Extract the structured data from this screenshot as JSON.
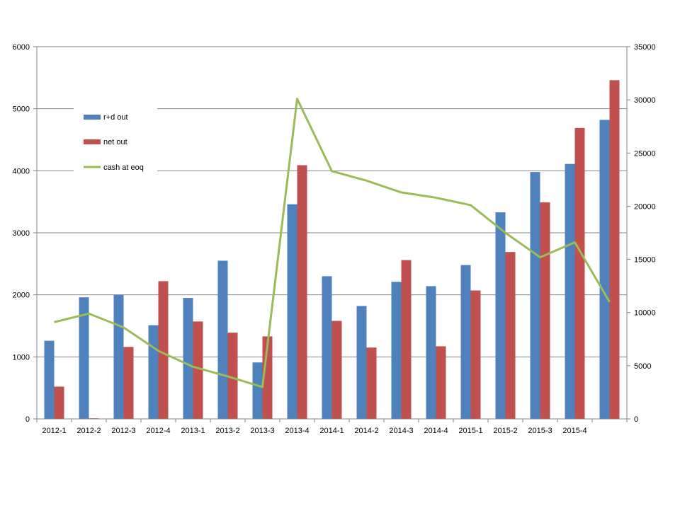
{
  "chart_data": {
    "type": "bar",
    "categories": [
      "2012-1",
      "2012-2",
      "2012-3",
      "2012-4",
      "2013-1",
      "2013-2",
      "2013-3",
      "2013-4",
      "2014-1",
      "2014-2",
      "2014-3",
      "2014-4",
      "2015-1",
      "2015-2",
      "2015-3",
      "2015-4",
      ""
    ],
    "series": [
      {
        "name": "r+d out",
        "type": "bar",
        "axis": "left",
        "color": "#4F81BD",
        "values": [
          1260,
          1960,
          2000,
          1510,
          1950,
          2550,
          910,
          3460,
          2300,
          1820,
          2210,
          2140,
          2480,
          3330,
          3980,
          4110,
          4820
        ]
      },
      {
        "name": "net out",
        "type": "bar",
        "axis": "left",
        "color": "#C0504D",
        "values": [
          520,
          10,
          1160,
          2220,
          1570,
          1390,
          1330,
          4090,
          1580,
          1150,
          2560,
          1170,
          2070,
          2690,
          3490,
          4690,
          5460
        ]
      },
      {
        "name": "cash at eoq",
        "type": "line",
        "axis": "right",
        "color": "#9BBB59",
        "values": [
          9100,
          9900,
          8600,
          6400,
          4900,
          4000,
          3000,
          30100,
          23300,
          22400,
          21300,
          20800,
          20100,
          17500,
          15200,
          16600,
          11000
        ]
      }
    ],
    "y_left": {
      "min": 0,
      "max": 6000,
      "ticks": [
        0,
        1000,
        2000,
        3000,
        4000,
        5000,
        6000
      ]
    },
    "y_right": {
      "min": 0,
      "max": 35000,
      "ticks": [
        0,
        5000,
        10000,
        15000,
        20000,
        25000,
        30000,
        35000
      ]
    },
    "title": "",
    "xlabel": "",
    "ylabel": "",
    "grid": true,
    "legend_position": "top-left inside"
  }
}
